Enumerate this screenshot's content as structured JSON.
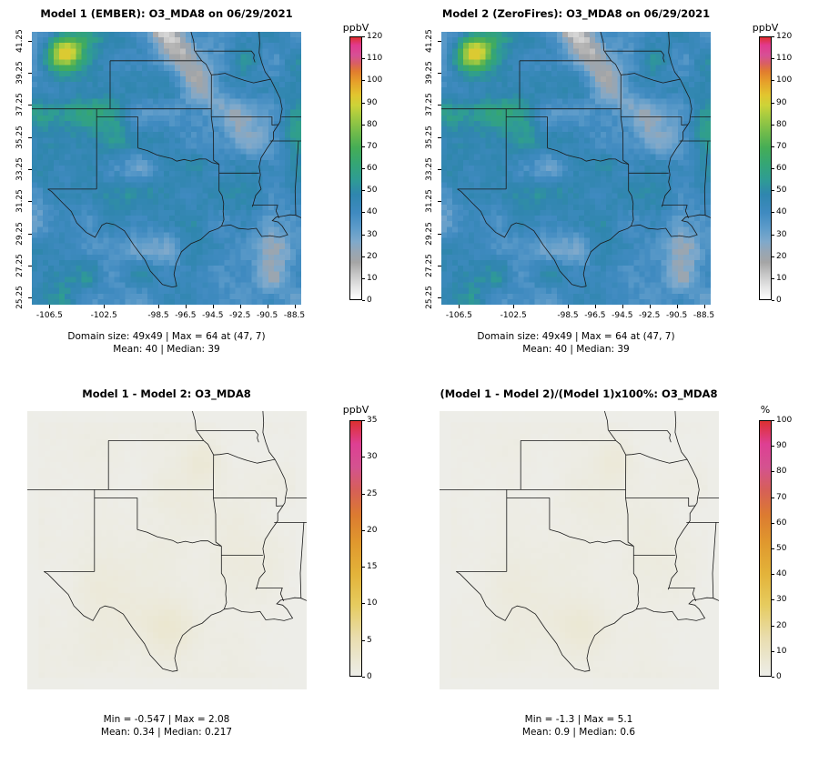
{
  "colors": {
    "background": "#ffffff",
    "boundary": "#1a1a1a",
    "scale_conc": [
      [
        0,
        "#ffffff"
      ],
      [
        0.05,
        "#e3e3e3"
      ],
      [
        0.1,
        "#c3c3c3"
      ],
      [
        0.14,
        "#a5a5a5"
      ],
      [
        0.18,
        "#97a6b4"
      ],
      [
        0.22,
        "#7fa9cb"
      ],
      [
        0.27,
        "#5e9cca"
      ],
      [
        0.33,
        "#3f8ac0"
      ],
      [
        0.4,
        "#2f86ae"
      ],
      [
        0.46,
        "#2f9d92"
      ],
      [
        0.52,
        "#35a673"
      ],
      [
        0.58,
        "#46ad55"
      ],
      [
        0.64,
        "#74bc4a"
      ],
      [
        0.7,
        "#a6cb40"
      ],
      [
        0.74,
        "#cdd338"
      ],
      [
        0.78,
        "#e2c52f"
      ],
      [
        0.83,
        "#e6a02a"
      ],
      [
        0.87,
        "#e17c2e"
      ],
      [
        0.9,
        "#d95f63"
      ],
      [
        0.93,
        "#d65095"
      ],
      [
        0.97,
        "#e23a8e"
      ],
      [
        1,
        "#de2f2f"
      ]
    ],
    "scale_diff": [
      [
        0,
        "#edede8"
      ],
      [
        0.06,
        "#ebe7d2"
      ],
      [
        0.15,
        "#e9ddae"
      ],
      [
        0.28,
        "#e6cb5e"
      ],
      [
        0.4,
        "#e3b33a"
      ],
      [
        0.52,
        "#e0992e"
      ],
      [
        0.63,
        "#dc7b30"
      ],
      [
        0.73,
        "#d65f58"
      ],
      [
        0.82,
        "#d45290"
      ],
      [
        0.91,
        "#de3f93"
      ],
      [
        1,
        "#dd3030"
      ]
    ]
  },
  "panels": [
    {
      "title": "Model 1 (EMBER): O3_MDA8 on 06/29/2021",
      "colorbar": {
        "title": "ppbV",
        "min": 0,
        "max": 120,
        "step": 10
      },
      "caption1": "Domain size: 49x49 | Max = 64 at (47, 7)",
      "caption2": "Mean: 40 | Median: 39",
      "x_ticks": [
        "-106.5",
        "-102.5",
        "-98.5",
        "-96.5",
        "-94.5",
        "-92.5",
        "-90.5",
        "-88.5"
      ],
      "y_ticks": [
        "25.25",
        "27.25",
        "29.25",
        "31.25",
        "33.25",
        "35.25",
        "37.25",
        "39.25",
        "41.25"
      ]
    },
    {
      "title": "Model 2 (ZeroFires): O3_MDA8 on 06/29/2021",
      "colorbar": {
        "title": "ppbV",
        "min": 0,
        "max": 120,
        "step": 10
      },
      "caption1": "Domain size: 49x49 | Max = 64 at (47, 7)",
      "caption2": "Mean: 40 | Median: 39",
      "x_ticks": [
        "-106.5",
        "-102.5",
        "-98.5",
        "-96.5",
        "-94.5",
        "-92.5",
        "-90.5",
        "-88.5"
      ],
      "y_ticks": [
        "25.25",
        "27.25",
        "29.25",
        "31.25",
        "33.25",
        "35.25",
        "37.25",
        "39.25",
        "41.25"
      ]
    },
    {
      "title": "Model 1 - Model 2: O3_MDA8",
      "colorbar": {
        "title": "ppbV",
        "min": 0,
        "max": 35,
        "step": 5
      },
      "caption1": "Min = -0.547 | Max = 2.08",
      "caption2": "Mean: 0.34 | Median: 0.217"
    },
    {
      "title": "(Model 1 - Model 2)/(Model 1)x100%: O3_MDA8",
      "colorbar": {
        "title": "%",
        "min": 0,
        "max": 100,
        "step": 10
      },
      "caption1": "Min = -1.3 | Max = 5.1",
      "caption2": "Mean: 0.9 | Median: 0.6"
    }
  ],
  "chart_data": [
    {
      "type": "heatmap",
      "title": "Model 1 (EMBER): O3_MDA8 on 06/29/2021",
      "variable": "O3_MDA8",
      "units": "ppbV",
      "date": "06/29/2021",
      "domain_size": "49x49",
      "x_ticks": [
        -106.5,
        -102.5,
        -98.5,
        -96.5,
        -94.5,
        -92.5,
        -90.5,
        -88.5
      ],
      "y_ticks": [
        25.25,
        27.25,
        29.25,
        31.25,
        33.25,
        35.25,
        37.25,
        39.25,
        41.25
      ],
      "colorbar": {
        "label": "ppbV",
        "range": [
          0,
          120
        ],
        "ticks": [
          0,
          10,
          20,
          30,
          40,
          50,
          60,
          70,
          80,
          90,
          100,
          110,
          120
        ],
        "position": "right"
      },
      "stats": {
        "max": 64,
        "max_at": "(47, 7)",
        "mean": 40,
        "median": 39
      },
      "description": "Spatial map over south-central US (TX/OK/KS/MO/AR/LA), mostly 30-50 ppbV blues with green patches and a yellow-green maximum in the northwest corner and a light low-value band running diagonally from top-center to the east"
    },
    {
      "type": "heatmap",
      "title": "Model 2 (ZeroFires): O3_MDA8 on 06/29/2021",
      "variable": "O3_MDA8",
      "units": "ppbV",
      "date": "06/29/2021",
      "domain_size": "49x49",
      "x_ticks": [
        -106.5,
        -102.5,
        -98.5,
        -96.5,
        -94.5,
        -92.5,
        -90.5,
        -88.5
      ],
      "y_ticks": [
        25.25,
        27.25,
        29.25,
        31.25,
        33.25,
        35.25,
        37.25,
        39.25,
        41.25
      ],
      "colorbar": {
        "label": "ppbV",
        "range": [
          0,
          120
        ],
        "ticks": [
          0,
          10,
          20,
          30,
          40,
          50,
          60,
          70,
          80,
          90,
          100,
          110,
          120
        ],
        "position": "right"
      },
      "stats": {
        "max": 64,
        "max_at": "(47, 7)",
        "mean": 40,
        "median": 39
      },
      "description": "Visually near-identical to Model 1 panel"
    },
    {
      "type": "heatmap",
      "title": "Model 1 - Model 2: O3_MDA8",
      "variable": "O3_MDA8",
      "units": "ppbV",
      "colorbar": {
        "label": "ppbV",
        "range": [
          0,
          35
        ],
        "ticks": [
          0,
          5,
          10,
          15,
          20,
          25,
          30,
          35
        ],
        "position": "right"
      },
      "stats": {
        "min": -0.547,
        "max": 2.08,
        "mean": 0.34,
        "median": 0.217
      },
      "description": "Difference map nearly uniform light gray (values near 0) with very faint cream/yellow tinting near the Texas coast and scattered interior spots"
    },
    {
      "type": "heatmap",
      "title": "(Model 1 - Model 2)/(Model 1)x100%: O3_MDA8",
      "variable": "O3_MDA8",
      "units": "%",
      "colorbar": {
        "label": "%",
        "range": [
          0,
          100
        ],
        "ticks": [
          0,
          10,
          20,
          30,
          40,
          50,
          60,
          70,
          80,
          90,
          100
        ],
        "position": "right"
      },
      "stats": {
        "min": -1.3,
        "max": 5.1,
        "mean": 0.9,
        "median": 0.6
      },
      "description": "Percent difference map nearly uniform light gray with very faint cream/yellow tinting near the Texas coast"
    }
  ]
}
